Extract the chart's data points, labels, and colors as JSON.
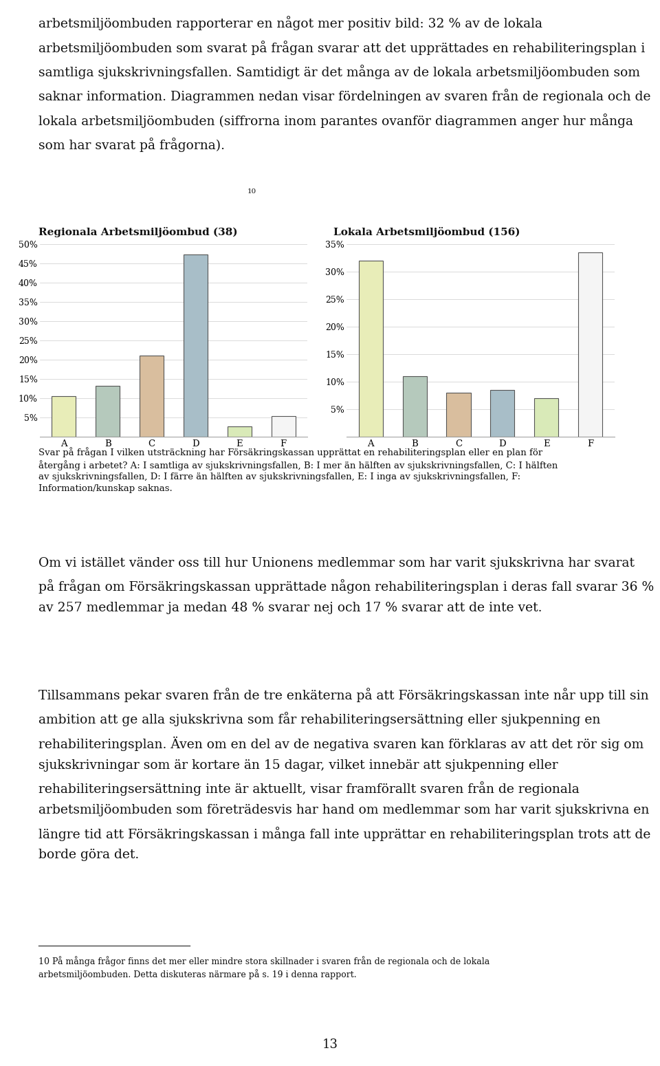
{
  "chart1_title": "Regionala Arbetsmiljöombud (38)",
  "chart2_title": "Lokala Arbetsmiljöombud (156)",
  "chart1_categories": [
    "A",
    "B",
    "C",
    "D",
    "E",
    "F"
  ],
  "chart1_values": [
    10.5,
    13.2,
    21.0,
    47.4,
    2.6,
    5.3
  ],
  "chart1_ylim": [
    0,
    50
  ],
  "chart1_yticks": [
    5,
    10,
    15,
    20,
    25,
    30,
    35,
    40,
    45,
    50
  ],
  "chart1_ytick_labels": [
    "5%",
    "10%",
    "15%",
    "20%",
    "25%",
    "30%",
    "35%",
    "40%",
    "45%",
    "50%"
  ],
  "chart2_categories": [
    "A",
    "B",
    "C",
    "D",
    "E",
    "F"
  ],
  "chart2_values": [
    32.0,
    11.0,
    8.0,
    8.5,
    7.0,
    33.5
  ],
  "chart2_ylim": [
    0,
    35
  ],
  "chart2_yticks": [
    5,
    10,
    15,
    20,
    25,
    30,
    35
  ],
  "chart2_ytick_labels": [
    "5%",
    "10%",
    "15%",
    "20%",
    "25%",
    "30%",
    "35%"
  ],
  "bar_colors": [
    "#e8edb8",
    "#b5c9bc",
    "#d9be9e",
    "#a8bec8",
    "#d9eab8",
    "#f5f5f5"
  ],
  "bar_edge_color": "#555555",
  "bar_linewidth": 0.8,
  "background_color": "#ffffff",
  "grid_color": "#cccccc",
  "text_color": "#111111",
  "body_fontsize": 13.5,
  "chart_title_fontsize": 11,
  "tick_fontsize": 9,
  "caption_fontsize": 9.5,
  "footnote_fontsize": 9,
  "page_num_fontsize": 13,
  "para1": "arbetsmiljöombuden rapporterar en något mer positiv bild: 32 % av de lokala\narbetsmiljöombuden som svarat på frågan svarar att det upprättades en rehabiliteringsplan i\nsamtliga sjukskrivningsfallen. Samtidigt är det många av de lokala arbetsmiljöombuden som\nsaknar information. Diagrammen nedan visar fördelningen av svaren från de regionala och de\nlokala arbetsmiljöombuden (siffrorna inom parantes ovanför diagrammen anger hur många\nsom har svarat på frågorna).",
  "footnote_super": "10",
  "caption": "Svar på frågan I vilken utsträckning har Försäkringskassan upprättat en rehabiliteringsplan eller en plan för\nåtergång i arbetet? A: I samtliga av sjukskrivningsfallen, B: I mer än hälften av sjukskrivningsfallen, C: I hälften\nav sjukskrivningsfallen, D: I färre än hälften av sjukskrivningsfallen, E: I inga av sjukskrivningsfallen, F:\nInformation/kunskap saknas.",
  "para3": "Om vi istället vänder oss till hur Unionens medlemmar som har varit sjukskrivna har svarat\npå frågan om Försäkringskassan upprättade någon rehabiliteringsplan i deras fall svarar 36 %\nav 257 medlemmar ja medan 48 % svarar nej och 17 % svarar att de inte vet.",
  "para4": "Tillsammans pekar svaren från de tre enkäterna på att Försäkringskassan inte når upp till sin\nambition att ge alla sjukskrivna som får rehabiliteringsersättning eller sjukpenning en\nrehabiliteringsplan. Även om en del av de negativa svaren kan förklaras av att det rör sig om\nsjukskrivningar som är kortare än 15 dagar, vilket innebär att sjukpenning eller\nrehabiliteringsersättning inte är aktuellt, visar framförallt svaren från de regionala\narbetsmiljöombuden som företrädesvis har hand om medlemmar som har varit sjukskrivna en\nlängre tid att Försäkringskassan i många fall inte upprättar en rehabiliteringsplan trots att de\nborde göra det.",
  "footnote": "10 På många frågor finns det mer eller mindre stora skillnader i svaren från de regionala och de lokala\narbetsmiljöombuden. Detta diskuteras närmare på s. 19 i denna rapport.",
  "page_number": "13"
}
